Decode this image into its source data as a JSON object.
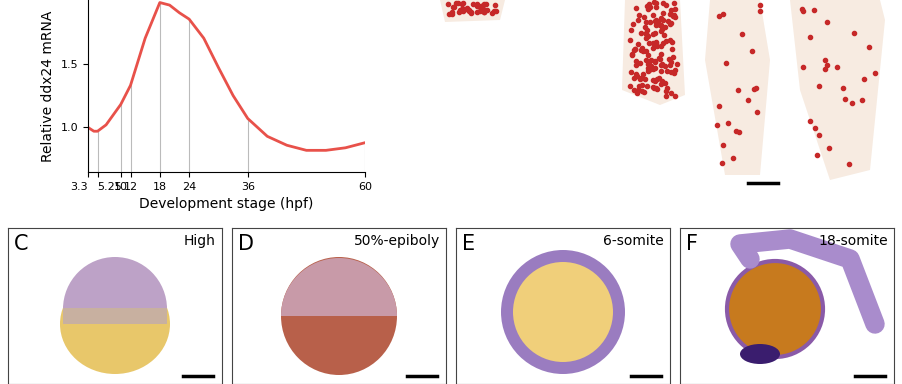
{
  "chart_data": {
    "type": "line",
    "x_label": "Development stage (hpf)",
    "y_label": "Relative ddx24 mRNA",
    "x": [
      3.3,
      4.5,
      5.25,
      7,
      10,
      12,
      15,
      18,
      20,
      22,
      24,
      27,
      30,
      33,
      36,
      40,
      44,
      48,
      52,
      56,
      60
    ],
    "values": [
      1.0,
      0.97,
      0.97,
      1.02,
      1.18,
      1.33,
      1.7,
      1.98,
      1.96,
      1.9,
      1.85,
      1.7,
      1.47,
      1.25,
      1.07,
      0.93,
      0.86,
      0.82,
      0.82,
      0.84,
      0.88
    ],
    "color": "#e8514a",
    "xlim": [
      3.3,
      60
    ],
    "xticks": [
      3.3,
      5.25,
      10,
      12,
      18,
      24,
      36,
      60
    ],
    "ylim": [
      0.65,
      2.0
    ],
    "yticks": [
      1.0,
      1.5
    ],
    "grid": false
  },
  "panels": [
    {
      "letter": "C",
      "stage": "High"
    },
    {
      "letter": "D",
      "stage": "50%-epiboly"
    },
    {
      "letter": "E",
      "stage": "6-somite"
    },
    {
      "letter": "F",
      "stage": "18-somite"
    }
  ]
}
